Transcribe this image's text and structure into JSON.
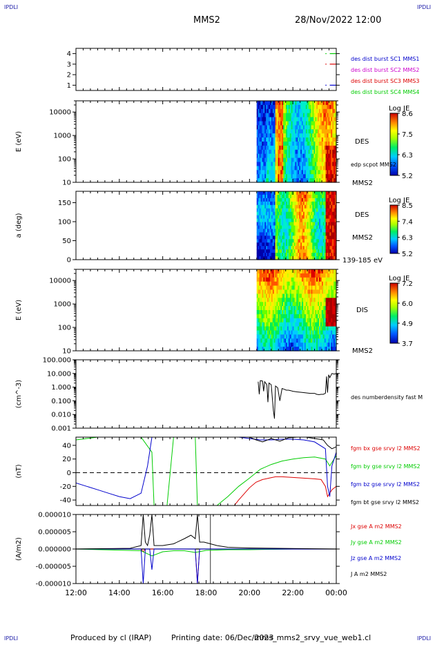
{
  "header": {
    "corner_label": "IPDLI",
    "spacecraft": "MMS2",
    "datetime": "28/Nov/2022 12:00"
  },
  "footer": {
    "producer": "Produced by cl (IRAP)",
    "printing": "Printing date: 06/Dec/2023",
    "file": "mms_mms2_srvy_vue_web1.cl"
  },
  "colors": {
    "red": "#dd0000",
    "green": "#00cc00",
    "blue": "#0000cc",
    "magenta": "#cc00cc",
    "black": "#000000"
  },
  "chart_data": [
    {
      "type": "line",
      "id": "burst",
      "yticks": [
        "1",
        "2",
        "3",
        "4"
      ],
      "ylim": [
        0.5,
        4.5
      ],
      "legend": [
        {
          "label": "des dist burst SC1 MMS1",
          "color": "#0000cc"
        },
        {
          "label": "des dist burst SC2 MMS2",
          "color": "#cc00cc"
        },
        {
          "label": "des dist burst SC3 MMS3",
          "color": "#dd0000"
        },
        {
          "label": "des dist burst SC4 MMS4",
          "color": "#00cc00"
        }
      ],
      "segments": [
        {
          "sc": 4,
          "t0": 23.5,
          "t1": 23.55,
          "color": "#00cc00"
        },
        {
          "sc": 4,
          "t0": 23.7,
          "t1": 24.0,
          "color": "#00cc00"
        },
        {
          "sc": 3,
          "t0": 23.5,
          "t1": 23.55,
          "color": "#dd0000"
        },
        {
          "sc": 3,
          "t0": 23.7,
          "t1": 24.0,
          "color": "#dd0000"
        },
        {
          "sc": 1,
          "t0": 23.5,
          "t1": 23.55,
          "color": "#0000cc"
        },
        {
          "sc": 1,
          "t0": 23.7,
          "t1": 24.0,
          "color": "#0000cc"
        }
      ]
    },
    {
      "type": "heatmap",
      "id": "des_energy",
      "ylabel": "E (eV)",
      "yscale": "log",
      "yticks": [
        "10",
        "100",
        "1000",
        "10000"
      ],
      "ylim": [
        10,
        30000
      ],
      "data_start": 20.33,
      "right_labels": [
        "DES",
        "edp scpot MMS2",
        "MMS2"
      ],
      "colorbar": {
        "title": "Log JE",
        "ticks": [
          "8.6",
          "7.5",
          "6.3",
          "5.2"
        ],
        "range": [
          5.2,
          8.6
        ]
      }
    },
    {
      "type": "heatmap",
      "id": "des_pitch",
      "ylabel": "a (deg)",
      "yticks": [
        "0",
        "50",
        "100",
        "150"
      ],
      "ylim": [
        0,
        180
      ],
      "data_start": 20.33,
      "right_labels": [
        "DES",
        "MMS2",
        "139-185 eV"
      ],
      "colorbar": {
        "title": "Log JE",
        "ticks": [
          "8.5",
          "7.4",
          "6.3",
          "5.2"
        ],
        "range": [
          5.2,
          8.5
        ]
      }
    },
    {
      "type": "heatmap",
      "id": "dis_energy",
      "ylabel": "E (eV)",
      "yscale": "log",
      "yticks": [
        "10",
        "100",
        "1000",
        "10000"
      ],
      "ylim": [
        10,
        30000
      ],
      "data_start": 20.33,
      "right_labels": [
        "DIS",
        "MMS2"
      ],
      "colorbar": {
        "title": "Log JE",
        "ticks": [
          "7.2",
          "6.0",
          "4.9",
          "3.7"
        ],
        "range": [
          3.7,
          7.2
        ]
      }
    },
    {
      "type": "line",
      "id": "density",
      "ylabel": "(cm^-3)",
      "yscale": "log",
      "yticks": [
        "0.001",
        "0.010",
        "0.100",
        "1.000",
        "10.000",
        "100.000"
      ],
      "ylim": [
        0.001,
        100
      ],
      "series": [
        {
          "name": "des numberdensity fast M",
          "color": "#000000",
          "x": [
            20.4,
            20.45,
            20.5,
            20.6,
            20.65,
            20.7,
            20.8,
            20.85,
            20.9,
            21.0,
            21.1,
            21.15,
            21.2,
            21.3,
            21.4,
            21.5,
            21.6,
            21.7,
            21.8,
            21.9,
            22.0,
            22.2,
            22.5,
            22.8,
            23.0,
            23.1,
            23.2,
            23.3,
            23.4,
            23.5,
            23.55,
            23.6,
            23.65,
            23.7,
            23.8,
            23.9,
            24.0
          ],
          "y": [
            2.5,
            0.3,
            3.0,
            2.8,
            0.5,
            2.5,
            1.5,
            0.08,
            2.0,
            1.5,
            0.02,
            0.005,
            1.2,
            0.9,
            0.1,
            0.8,
            0.7,
            0.6,
            0.6,
            0.55,
            0.5,
            0.45,
            0.4,
            0.35,
            0.35,
            0.3,
            0.28,
            0.3,
            0.3,
            0.35,
            6.0,
            0.4,
            8.0,
            5.0,
            10.0,
            9.0,
            10.0
          ]
        }
      ]
    },
    {
      "type": "line",
      "id": "bfield",
      "ylabel": "(nT)",
      "yticks": [
        "-40",
        "-20",
        "0",
        "20",
        "40"
      ],
      "ylim": [
        -48,
        52
      ],
      "series": [
        {
          "name": "fgm bx gse srvy l2 MMS2",
          "color": "#dd0000",
          "x": [
            19.3,
            19.5,
            20.0,
            20.3,
            20.6,
            20.9,
            21.2,
            21.5,
            22.0,
            22.5,
            23.0,
            23.3,
            23.5,
            23.6,
            23.7,
            23.8,
            24.0
          ],
          "y": [
            -48,
            -40,
            -22,
            -14,
            -10,
            -8,
            -6,
            -6,
            -7,
            -8,
            -9,
            -10,
            -20,
            -35,
            -30,
            -25,
            -20
          ]
        },
        {
          "name": "fgm by gse srvy l2 MMS2",
          "color": "#00cc00",
          "x": [
            12.0,
            12.5,
            13.0,
            14.0,
            15.0,
            15.5,
            15.6,
            16.0,
            16.2,
            16.5,
            17.0,
            17.5,
            17.6,
            18.0,
            18.5,
            19.0,
            19.5,
            20.0,
            20.5,
            21.0,
            21.5,
            22.0,
            22.5,
            23.0,
            23.5,
            23.7,
            24.0
          ],
          "y": [
            48,
            50,
            52,
            52,
            52,
            30,
            -48,
            -48,
            -48,
            52,
            52,
            52,
            -48,
            -48,
            -48,
            -35,
            -20,
            -8,
            5,
            12,
            17,
            20,
            22,
            23,
            20,
            10,
            25
          ]
        },
        {
          "name": "fgm bz gse srvy l2 MMS2",
          "color": "#0000cc",
          "x": [
            12.0,
            12.5,
            13.0,
            13.5,
            14.0,
            14.5,
            15.0,
            15.3,
            15.5,
            15.6,
            16.0,
            16.5,
            17.0,
            17.5,
            18.0,
            18.5,
            19.0,
            19.5,
            20.0,
            20.5,
            21.0,
            21.5,
            22.0,
            22.5,
            23.0,
            23.5,
            23.6,
            23.7,
            23.8,
            24.0
          ],
          "y": [
            -15,
            -20,
            -25,
            -30,
            -35,
            -38,
            -30,
            10,
            52,
            52,
            52,
            52,
            52,
            52,
            52,
            52,
            52,
            52,
            50,
            48,
            48,
            49,
            49,
            48,
            45,
            35,
            -20,
            -35,
            10,
            30
          ]
        },
        {
          "name": "fgm bt gse srvy l2 MMS2",
          "color": "#000000",
          "x": [
            20.0,
            20.3,
            20.6,
            21.0,
            21.4,
            21.8,
            22.2,
            22.6,
            23.0,
            23.4,
            23.6,
            23.8,
            24.0
          ],
          "y": [
            52,
            48,
            45,
            50,
            46,
            51,
            52,
            52,
            50,
            48,
            40,
            35,
            38
          ]
        }
      ]
    },
    {
      "type": "line",
      "id": "current",
      "ylabel": "(A/m2)",
      "yticks": [
        "-0.000010",
        "-0.000005",
        "0.000000",
        "0.000005",
        "0.000010"
      ],
      "ylim": [
        -1e-05,
        1e-05
      ],
      "series": [
        {
          "name": "Jx gse A m2 MMS2",
          "color": "#dd0000",
          "x": [
            12.0,
            15.0,
            15.1,
            15.2,
            16.0,
            17.5,
            17.6,
            17.7,
            19.0,
            22.0,
            24.0
          ],
          "y": [
            0.0,
            0.0,
            -8e-07,
            0.0,
            0.0,
            0.0,
            -1e-05,
            0.0,
            0.0,
            0.0,
            0.0
          ]
        },
        {
          "name": "Jy gse A m2 MMS2",
          "color": "#00cc00",
          "x": [
            12.0,
            15.0,
            15.5,
            16.0,
            16.5,
            17.0,
            17.5,
            18.0,
            19.0,
            20.0,
            22.0,
            24.0
          ],
          "y": [
            0.0,
            -5e-07,
            -2e-06,
            -8e-07,
            -5e-07,
            -5e-07,
            -1e-06,
            -4e-07,
            -2e-07,
            -2e-07,
            0.0,
            0.0
          ]
        },
        {
          "name": "Jz gse A m2 MMS2",
          "color": "#0000cc",
          "x": [
            12.0,
            15.0,
            15.1,
            15.2,
            15.4,
            15.5,
            15.6,
            17.5,
            17.6,
            17.7,
            24.0
          ],
          "y": [
            0.0,
            0.0,
            -1e-05,
            0.0,
            0.0,
            -6e-06,
            0.0,
            0.0,
            -1e-05,
            0.0,
            0.0
          ]
        },
        {
          "name": "J A m2 MMS2",
          "color": "#000000",
          "x": [
            12.0,
            14.5,
            15.0,
            15.1,
            15.2,
            15.3,
            15.4,
            15.5,
            15.6,
            16.0,
            16.5,
            17.0,
            17.3,
            17.5,
            17.6,
            17.7,
            17.9,
            18.2,
            18.5,
            19.0,
            20.0,
            24.0
          ],
          "y": [
            0.0,
            2e-07,
            1e-06,
            1e-05,
            2e-06,
            1e-06,
            4e-06,
            1e-05,
            1e-06,
            1e-06,
            1.5e-06,
            3e-06,
            4e-06,
            3e-06,
            1e-05,
            2e-06,
            2e-06,
            1.5e-06,
            1e-06,
            5e-07,
            3e-07,
            0.0
          ]
        }
      ]
    }
  ],
  "time_axis": {
    "start": 12,
    "end": 24,
    "ticks": [
      "12:00",
      "14:00",
      "16:00",
      "18:00",
      "20:00",
      "22:00",
      "00:00"
    ]
  }
}
